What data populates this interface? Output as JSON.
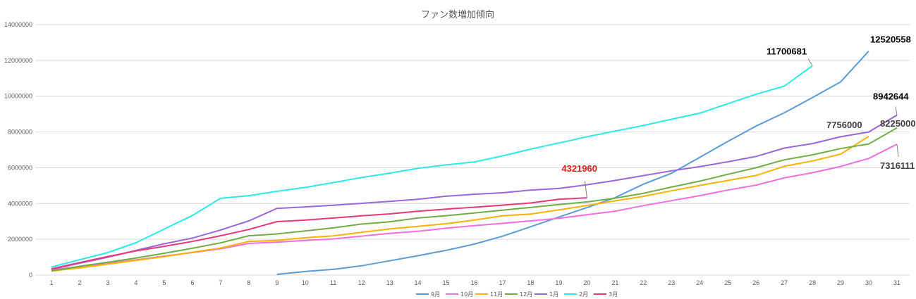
{
  "chart_data": {
    "type": "line",
    "title": "ファン数増加傾向",
    "xlabel": "",
    "ylabel": "",
    "x": [
      1,
      2,
      3,
      4,
      5,
      6,
      7,
      8,
      9,
      10,
      11,
      12,
      13,
      14,
      15,
      16,
      17,
      18,
      19,
      20,
      21,
      22,
      23,
      24,
      25,
      26,
      27,
      28,
      29,
      30,
      31
    ],
    "ylim": [
      0,
      14000000
    ],
    "yticks": [
      0,
      2000000,
      4000000,
      6000000,
      8000000,
      10000000,
      12000000,
      14000000
    ],
    "ytick_labels": [
      "0",
      "2000000",
      "4000000",
      "6000000",
      "8000000",
      "10000000",
      "12000000",
      "14000000"
    ],
    "xtick_labels": [
      "1",
      "2",
      "3",
      "4",
      "5",
      "6",
      "7",
      "8",
      "9",
      "10",
      "11",
      "12",
      "13",
      "14",
      "15",
      "16",
      "17",
      "18",
      "19",
      "20",
      "21",
      "22",
      "23",
      "24",
      "25",
      "26",
      "27",
      "28",
      "29",
      "30",
      "31"
    ],
    "grid": "horizontal",
    "legend_position": "bottom",
    "series": [
      {
        "name": "9月",
        "color": "#5b9bd5",
        "values": [
          null,
          null,
          null,
          null,
          null,
          null,
          null,
          null,
          40000,
          200000,
          320000,
          520000,
          800000,
          1080000,
          1380000,
          1730000,
          2170000,
          2700000,
          3240000,
          3770000,
          4330000,
          5080000,
          5690000,
          6580000,
          7470000,
          8330000,
          9070000,
          9920000,
          10800000,
          12520558,
          null
        ]
      },
      {
        "name": "10月",
        "color": "#f06ee0",
        "values": [
          290000,
          470000,
          660000,
          850000,
          1060000,
          1260000,
          1470000,
          1770000,
          1840000,
          1940000,
          2020000,
          2180000,
          2330000,
          2450000,
          2620000,
          2760000,
          2890000,
          3030000,
          3170000,
          3380000,
          3570000,
          3880000,
          4160000,
          4440000,
          4750000,
          5030000,
          5430000,
          5720000,
          6070000,
          6520000,
          7316111
        ]
      },
      {
        "name": "11月",
        "color": "#f4b400",
        "values": [
          230000,
          400000,
          610000,
          820000,
          1030000,
          1280000,
          1510000,
          1880000,
          1940000,
          2090000,
          2190000,
          2390000,
          2580000,
          2720000,
          2870000,
          3070000,
          3310000,
          3410000,
          3640000,
          3890000,
          4150000,
          4400000,
          4710000,
          5010000,
          5290000,
          5570000,
          6080000,
          6380000,
          6760000,
          7756000,
          null
        ]
      },
      {
        "name": "12月",
        "color": "#70ad47",
        "values": [
          230000,
          490000,
          720000,
          950000,
          1220000,
          1500000,
          1800000,
          2200000,
          2300000,
          2470000,
          2640000,
          2850000,
          2980000,
          3190000,
          3320000,
          3470000,
          3630000,
          3780000,
          3940000,
          4090000,
          4300000,
          4570000,
          4920000,
          5250000,
          5630000,
          6000000,
          6440000,
          6720000,
          7070000,
          7330000,
          8225000
        ]
      },
      {
        "name": "1月",
        "color": "#9966dd",
        "values": [
          320000,
          660000,
          1000000,
          1380000,
          1750000,
          2070000,
          2520000,
          3030000,
          3730000,
          3810000,
          3900000,
          4010000,
          4120000,
          4240000,
          4410000,
          4520000,
          4600000,
          4750000,
          4840000,
          5050000,
          5290000,
          5560000,
          5830000,
          6060000,
          6330000,
          6630000,
          7100000,
          7350000,
          7730000,
          8000000,
          8942644
        ]
      },
      {
        "name": "2月",
        "color": "#2ee8e8",
        "values": [
          450000,
          860000,
          1260000,
          1810000,
          2570000,
          3330000,
          4290000,
          4440000,
          4680000,
          4900000,
          5170000,
          5450000,
          5700000,
          5970000,
          6160000,
          6320000,
          6660000,
          7040000,
          7380000,
          7730000,
          8050000,
          8360000,
          8710000,
          9050000,
          9580000,
          10110000,
          10560000,
          11700681,
          null,
          null,
          null
        ]
      },
      {
        "name": "3月",
        "color": "#e8377a",
        "values": [
          350000,
          700000,
          1040000,
          1350000,
          1610000,
          1880000,
          2200000,
          2550000,
          2990000,
          3070000,
          3190000,
          3310000,
          3420000,
          3570000,
          3690000,
          3790000,
          3910000,
          4030000,
          4240000,
          4321960,
          null,
          null,
          null,
          null,
          null,
          null,
          null,
          null,
          null,
          null,
          null
        ]
      }
    ],
    "annotations": [
      {
        "text": "11700681",
        "color": "#000000",
        "series": "2月",
        "x": 28
      },
      {
        "text": "12520558",
        "color": "#000000",
        "series": "9月",
        "x": 30
      },
      {
        "text": "8942644",
        "color": "#000000",
        "series": "1月",
        "x": 31
      },
      {
        "text": "7756000",
        "color": "#404040",
        "series": "11月",
        "x": 30
      },
      {
        "text": "8225000",
        "color": "#404040",
        "series": "12月",
        "x": 31
      },
      {
        "text": "7316111",
        "color": "#404040",
        "series": "10月",
        "x": 31
      },
      {
        "text": "4321960",
        "color": "#e0201b",
        "series": "3月",
        "x": 20
      }
    ]
  }
}
